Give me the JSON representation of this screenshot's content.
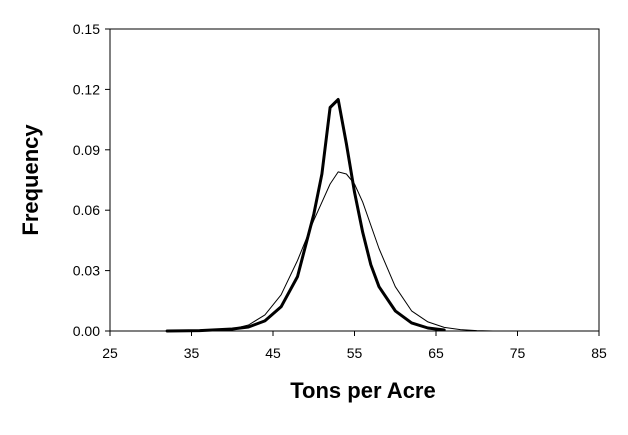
{
  "chart_data": {
    "type": "line",
    "title": "",
    "xlabel": "Tons per Acre",
    "ylabel": "Frequency",
    "xlim": [
      25,
      85
    ],
    "ylim": [
      0,
      0.15
    ],
    "x_ticks": [
      25,
      35,
      45,
      55,
      65,
      75,
      85
    ],
    "x_tick_labels": [
      "25",
      "35",
      "45",
      "55",
      "65",
      "75",
      "85"
    ],
    "y_ticks": [
      0,
      0.03,
      0.06,
      0.09,
      0.12,
      0.15
    ],
    "y_tick_labels": [
      "0.00",
      "0.03",
      "0.06",
      "0.09",
      "0.12",
      "0.15"
    ],
    "grid": false,
    "legend": "none",
    "series": [
      {
        "style": "thick",
        "color": "#000000",
        "points": [
          [
            32,
            0
          ],
          [
            36,
            0.0002
          ],
          [
            40,
            0.001
          ],
          [
            42,
            0.002
          ],
          [
            44,
            0.005
          ],
          [
            46,
            0.012
          ],
          [
            48,
            0.027
          ],
          [
            50,
            0.058
          ],
          [
            51,
            0.078
          ],
          [
            52,
            0.111
          ],
          [
            53,
            0.115
          ],
          [
            54,
            0.093
          ],
          [
            55,
            0.069
          ],
          [
            56,
            0.049
          ],
          [
            57,
            0.033
          ],
          [
            58,
            0.022
          ],
          [
            60,
            0.01
          ],
          [
            62,
            0.004
          ],
          [
            64,
            0.0015
          ],
          [
            66,
            0.0005
          ]
        ]
      },
      {
        "style": "thin",
        "color": "#000000",
        "points": [
          [
            38,
            0
          ],
          [
            40,
            0.001
          ],
          [
            42,
            0.003
          ],
          [
            44,
            0.008
          ],
          [
            46,
            0.018
          ],
          [
            48,
            0.035
          ],
          [
            50,
            0.055
          ],
          [
            52,
            0.073
          ],
          [
            53,
            0.079
          ],
          [
            54,
            0.078
          ],
          [
            55,
            0.073
          ],
          [
            56,
            0.064
          ],
          [
            58,
            0.041
          ],
          [
            60,
            0.022
          ],
          [
            62,
            0.01
          ],
          [
            64,
            0.0045
          ],
          [
            66,
            0.0018
          ],
          [
            68,
            0.0007
          ],
          [
            70,
            0.0002
          ],
          [
            72,
            0
          ]
        ]
      }
    ]
  }
}
